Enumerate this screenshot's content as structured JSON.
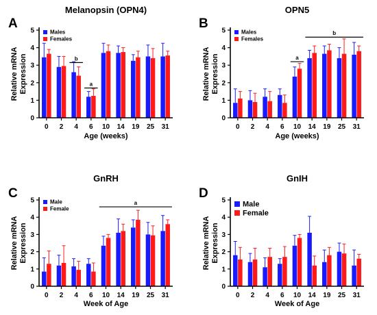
{
  "colors": {
    "male": "#1a1aff",
    "female": "#ff1a1a",
    "axis": "#000000"
  },
  "chart_data": [
    {
      "type": "bar",
      "panel": "A",
      "title": "Melanopsin (OPN4)",
      "xlabel": "Age (weeks)",
      "ylabel": "Relative mRNA Expression",
      "ylabel_lines": [
        "Relative mRNA",
        "Expression"
      ],
      "ylim": [
        0,
        5
      ],
      "yticks": [
        0,
        1,
        2,
        3,
        4,
        5
      ],
      "categories": [
        "0",
        "2",
        "4",
        "6",
        "10",
        "14",
        "19",
        "25",
        "31"
      ],
      "legend_position": "top-left",
      "series": [
        {
          "name": "Males",
          "values": [
            3.45,
            2.9,
            2.6,
            1.2,
            3.7,
            3.7,
            3.25,
            3.5,
            3.5
          ],
          "errors": [
            0.8,
            0.6,
            0.6,
            0.3,
            0.55,
            0.4,
            0.35,
            0.65,
            0.75
          ]
        },
        {
          "name": "Females",
          "values": [
            3.65,
            2.95,
            2.4,
            1.25,
            3.8,
            3.75,
            3.45,
            3.4,
            3.55
          ],
          "errors": [
            0.25,
            0.55,
            0.5,
            0.4,
            0.35,
            0.25,
            0.35,
            0.55,
            0.25
          ]
        }
      ],
      "annotations": [
        {
          "text": "b",
          "from": "4",
          "to": "4",
          "y": 3.15
        },
        {
          "text": "a",
          "from": "6",
          "to": "6",
          "y": 1.7
        }
      ]
    },
    {
      "type": "bar",
      "panel": "B",
      "title": "OPN5",
      "xlabel": "Age (weeks)",
      "ylabel": "Relative mRNA Expression",
      "ylabel_lines": [
        "Relative mRNA",
        "Expression"
      ],
      "ylim": [
        0,
        5
      ],
      "yticks": [
        0,
        1,
        2,
        3,
        4,
        5
      ],
      "categories": [
        "0",
        "2",
        "4",
        "6",
        "10",
        "14",
        "19",
        "25",
        "31"
      ],
      "legend_position": "top-left",
      "series": [
        {
          "name": "Males",
          "values": [
            0.85,
            1.0,
            1.2,
            1.3,
            2.35,
            3.4,
            3.65,
            3.4,
            3.6
          ],
          "errors": [
            0.8,
            0.55,
            0.45,
            0.35,
            0.55,
            0.45,
            0.45,
            0.6,
            0.7
          ]
        },
        {
          "name": "Females",
          "values": [
            1.1,
            0.9,
            0.95,
            0.85,
            2.8,
            3.7,
            3.85,
            3.65,
            3.8
          ],
          "errors": [
            0.4,
            0.5,
            0.55,
            0.45,
            0.3,
            0.4,
            0.35,
            0.85,
            0.3
          ]
        }
      ],
      "annotations": [
        {
          "text": "a",
          "from": "10",
          "to": "10",
          "y": 3.2
        },
        {
          "text": "b",
          "from": "14",
          "to": "31",
          "y": 4.6
        }
      ]
    },
    {
      "type": "bar",
      "panel": "C",
      "title": "GnRH",
      "xlabel": "Week of Age",
      "ylabel": "Relative mRNA Expression",
      "ylabel_lines": [
        "Relative mRNA",
        "Expression"
      ],
      "ylim": [
        0,
        5
      ],
      "yticks": [
        0,
        1,
        2,
        3,
        4,
        5
      ],
      "categories": [
        "0",
        "2",
        "4",
        "6",
        "10",
        "14",
        "19",
        "25",
        "31"
      ],
      "legend_position": "top-left",
      "series": [
        {
          "name": "Male",
          "values": [
            0.85,
            1.2,
            1.15,
            1.3,
            2.35,
            3.1,
            3.4,
            3.0,
            3.2
          ],
          "errors": [
            0.8,
            0.6,
            0.45,
            0.3,
            0.55,
            0.8,
            0.45,
            0.7,
            0.9
          ]
        },
        {
          "name": "Female",
          "values": [
            1.3,
            1.35,
            0.95,
            0.85,
            2.8,
            3.2,
            3.85,
            2.95,
            3.6
          ],
          "errors": [
            0.75,
            1.0,
            0.5,
            0.5,
            0.2,
            0.4,
            0.55,
            0.55,
            0.25
          ]
        }
      ],
      "annotations": [
        {
          "text": "a",
          "from": "10",
          "to": "31",
          "y": 4.6
        }
      ]
    },
    {
      "type": "bar",
      "panel": "D",
      "title": "GnIH",
      "xlabel": "Week of Age",
      "ylabel": "Relative mRNA Expression",
      "ylabel_lines": [
        "Relative mRNA",
        "Expression"
      ],
      "ylim": [
        0,
        5
      ],
      "yticks": [
        0,
        1,
        2,
        3,
        4,
        5
      ],
      "categories": [
        "0",
        "2",
        "4",
        "6",
        "10",
        "14",
        "19",
        "25",
        "31"
      ],
      "legend_position": "top-left",
      "series": [
        {
          "name": "Male",
          "values": [
            1.8,
            1.4,
            1.1,
            1.3,
            2.35,
            3.1,
            1.4,
            2.0,
            1.2
          ],
          "errors": [
            0.8,
            0.5,
            0.55,
            0.3,
            0.6,
            0.95,
            0.7,
            0.5,
            0.9
          ]
        },
        {
          "name": "Female",
          "values": [
            1.55,
            1.55,
            1.7,
            1.7,
            2.8,
            1.2,
            1.8,
            1.9,
            1.6
          ],
          "errors": [
            0.7,
            0.65,
            0.5,
            0.6,
            0.2,
            0.55,
            0.45,
            0.55,
            0.25
          ]
        }
      ],
      "annotations": []
    }
  ]
}
